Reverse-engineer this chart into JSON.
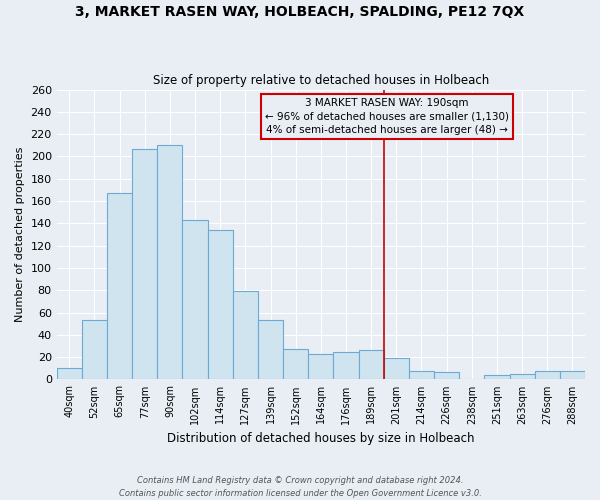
{
  "title": "3, MARKET RASEN WAY, HOLBEACH, SPALDING, PE12 7QX",
  "subtitle": "Size of property relative to detached houses in Holbeach",
  "xlabel": "Distribution of detached houses by size in Holbeach",
  "ylabel": "Number of detached properties",
  "bar_labels": [
    "40sqm",
    "52sqm",
    "65sqm",
    "77sqm",
    "90sqm",
    "102sqm",
    "114sqm",
    "127sqm",
    "139sqm",
    "152sqm",
    "164sqm",
    "176sqm",
    "189sqm",
    "201sqm",
    "214sqm",
    "226sqm",
    "238sqm",
    "251sqm",
    "263sqm",
    "276sqm",
    "288sqm"
  ],
  "bar_values": [
    10,
    53,
    167,
    207,
    210,
    143,
    134,
    79,
    53,
    27,
    23,
    25,
    26,
    19,
    8,
    7,
    0,
    4,
    5,
    8,
    8
  ],
  "bar_color": "#d0e4f0",
  "bar_edge_color": "#6aaad4",
  "vline_color": "#cc0000",
  "vline_x": 12.5,
  "annotation_text": "3 MARKET RASEN WAY: 190sqm\n← 96% of detached houses are smaller (1,130)\n4% of semi-detached houses are larger (48) →",
  "annotation_box_edge": "#cc0000",
  "annotation_box_face": "#e8eef4",
  "ylim": [
    0,
    260
  ],
  "yticks": [
    0,
    20,
    40,
    60,
    80,
    100,
    120,
    140,
    160,
    180,
    200,
    220,
    240,
    260
  ],
  "footer_line1": "Contains HM Land Registry data © Crown copyright and database right 2024.",
  "footer_line2": "Contains public sector information licensed under the Open Government Licence v3.0.",
  "bg_color": "#e8eef4",
  "grid_color": "#ffffff",
  "spine_color": "#aaaaaa"
}
